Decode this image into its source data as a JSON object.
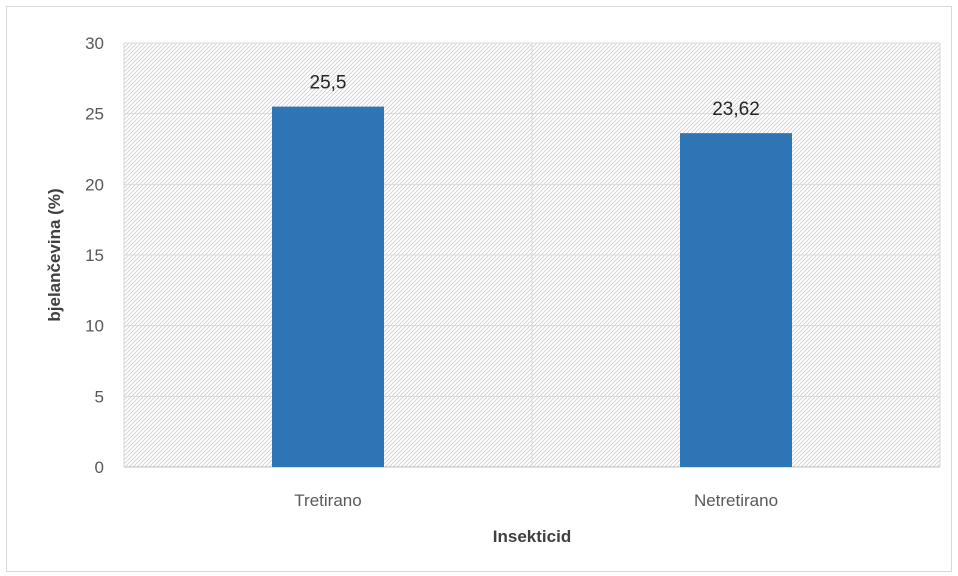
{
  "chart_data": {
    "type": "bar",
    "categories": [
      "Tretirano",
      "Netretirano"
    ],
    "values": [
      25.5,
      23.62
    ],
    "data_labels": [
      "25,5",
      "23,62"
    ],
    "xlabel": "Insekticid",
    "ylabel": "bjelančevina (%)",
    "ylim": [
      0,
      30
    ],
    "yticks": [
      "0",
      "5",
      "10",
      "15",
      "20",
      "25",
      "30"
    ],
    "ytick_values": [
      0,
      5,
      10,
      15,
      20,
      25,
      30
    ],
    "grid": true,
    "legend": "none",
    "bar_color": "#2e75b6",
    "grid_color": "#d9d9d9",
    "plot_fill_pattern": "diagonal-hatch"
  }
}
